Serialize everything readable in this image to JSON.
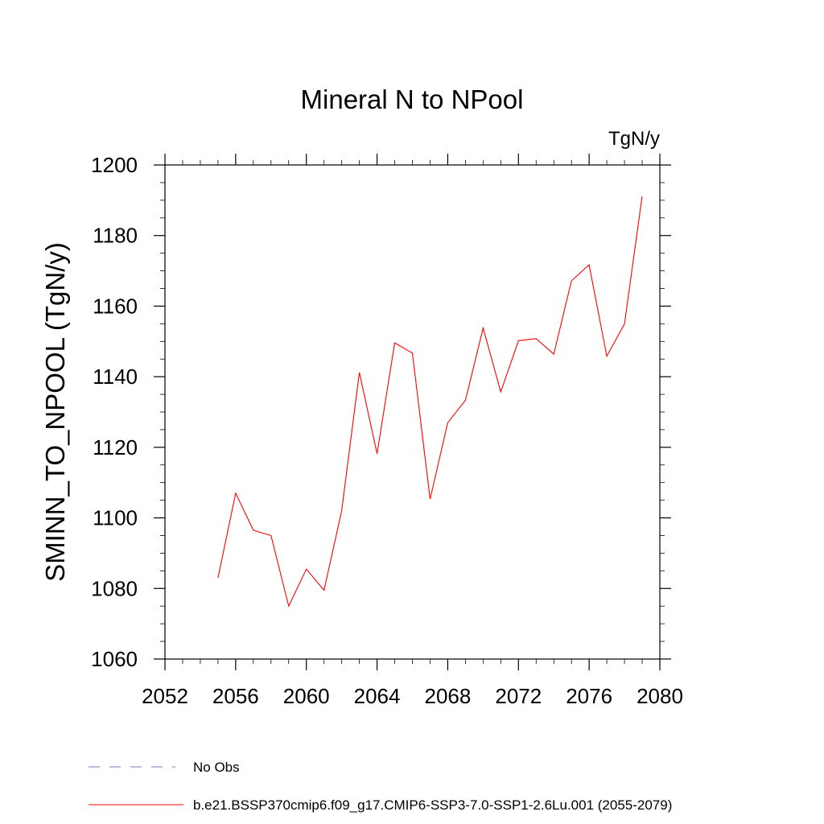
{
  "chart_data": {
    "type": "line",
    "title": "Mineral N to NPool",
    "units_label": "TgN/y",
    "xlabel": "",
    "ylabel": "SMINN_TO_NPOOL  (TgN/y)",
    "xlim": [
      2052,
      2080
    ],
    "ylim": [
      1060,
      1200
    ],
    "xticks": [
      2052,
      2056,
      2060,
      2064,
      2068,
      2072,
      2076,
      2080
    ],
    "yticks": [
      1060,
      1080,
      1100,
      1120,
      1140,
      1160,
      1180,
      1200
    ],
    "grid": false,
    "legend_position": "bottom-left",
    "series": [
      {
        "name": "b.e21.BSSP370cmip6.f09_g17.CMIP6-SSP3-7.0-SSP1-2.6Lu.001 (2055-2079)",
        "color": "#ff0000",
        "style": "solid",
        "x": [
          2055,
          2056,
          2057,
          2058,
          2059,
          2060,
          2061,
          2062,
          2063,
          2064,
          2065,
          2066,
          2067,
          2068,
          2069,
          2070,
          2071,
          2072,
          2073,
          2074,
          2075,
          2076,
          2077,
          2078,
          2079
        ],
        "y": [
          1083,
          1107,
          1096.5,
          1095,
          1075,
          1085.5,
          1079.5,
          1102,
          1141.2,
          1118.2,
          1149.6,
          1146.7,
          1105.3,
          1127,
          1133.3,
          1153.8,
          1135.7,
          1150.2,
          1150.8,
          1146.4,
          1167.2,
          1171.7,
          1145.8,
          1155,
          1191.1
        ]
      }
    ],
    "legend": [
      {
        "label": "No Obs",
        "color": "#7b73b6",
        "style": "dashed"
      },
      {
        "label": "b.e21.BSSP370cmip6.f09_g17.CMIP6-SSP3-7.0-SSP1-2.6Lu.001 (2055-2079)",
        "color": "#ff0000",
        "style": "solid"
      }
    ]
  }
}
